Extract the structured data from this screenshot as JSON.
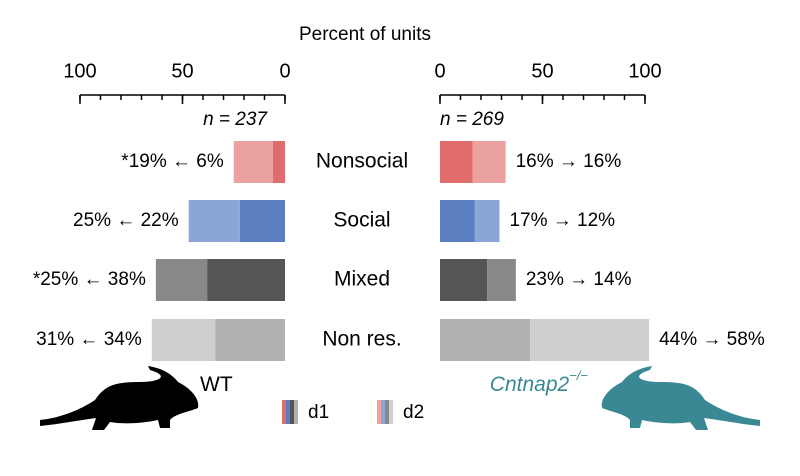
{
  "chart_data": {
    "type": "bar",
    "xlabel": "Percent of units",
    "categories": [
      "Nonsocial",
      "Social",
      "Mixed",
      "Non res."
    ],
    "xlim": [
      0,
      100
    ],
    "xticks": [
      0,
      50,
      100
    ],
    "minor_tick_step": 10,
    "groups": [
      {
        "name": "WT",
        "n_label": "n = 237",
        "direction": "left",
        "color": "#000000",
        "series": [
          {
            "name": "d1",
            "values": [
              6,
              22,
              38,
              34
            ],
            "colors": [
              "#e06c6c",
              "#5a7ebf",
              "#555555",
              "#b0b0b0"
            ]
          },
          {
            "name": "d2",
            "values": [
              19,
              25,
              25,
              31
            ],
            "colors": [
              "#eca1a1",
              "#8aa6d7",
              "#888888",
              "#cfcfcf"
            ]
          }
        ],
        "annotations": [
          "*19% ← 6%",
          "25% ← 22%",
          "*25% ← 38%",
          "31% ← 34%"
        ]
      },
      {
        "name": "Cntnap2",
        "name_sup": "−/−",
        "n_label": "n = 269",
        "direction": "right",
        "color": "#3a8893",
        "series": [
          {
            "name": "d1",
            "values": [
              16,
              17,
              23,
              44
            ],
            "colors": [
              "#e06c6c",
              "#5a7ebf",
              "#555555",
              "#b0b0b0"
            ]
          },
          {
            "name": "d2",
            "values": [
              16,
              12,
              14,
              58
            ],
            "colors": [
              "#eca1a1",
              "#8aa6d7",
              "#888888",
              "#cfcfcf"
            ]
          }
        ],
        "annotations": [
          "16% → 16%",
          "17% → 12%",
          "23% → 14%",
          "44% → 58%"
        ]
      }
    ]
  }
}
